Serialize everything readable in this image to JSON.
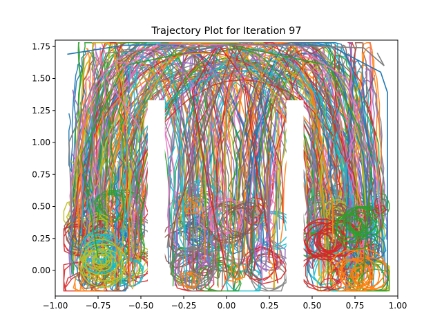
{
  "chart_data": {
    "type": "line",
    "title": "Trajectory Plot for Iteration 97",
    "xlabel": "",
    "ylabel": "",
    "xlim": [
      -1.0,
      1.0
    ],
    "ylim": [
      -0.2,
      1.8
    ],
    "grid": false,
    "legend": "none",
    "x_ticks": [
      -1.0,
      -0.75,
      -0.5,
      -0.25,
      0.0,
      0.25,
      0.5,
      0.75,
      1.0
    ],
    "x_tick_labels": [
      "−1.00",
      "−0.75",
      "−0.50",
      "−0.25",
      "0.00",
      "0.25",
      "0.50",
      "0.75",
      "1.00"
    ],
    "y_ticks": [
      0.0,
      0.25,
      0.5,
      0.75,
      1.0,
      1.25,
      1.5,
      1.75
    ],
    "y_tick_labels": [
      "0.00",
      "0.25",
      "0.50",
      "0.75",
      "1.00",
      "1.25",
      "1.50",
      "1.75"
    ],
    "environment": {
      "top": 1.78,
      "bottom": -0.16,
      "left": -0.95,
      "right": 0.95,
      "walls": [
        {
          "x": [
            -0.46,
            -0.36
          ],
          "y": [
            -0.16,
            1.33
          ]
        },
        {
          "x": [
            0.35,
            0.45
          ],
          "y": [
            -0.16,
            1.33
          ]
        }
      ]
    },
    "colors": [
      "#1f77b4",
      "#ff7f0e",
      "#2ca02c",
      "#d62728",
      "#9467bd",
      "#8c564b",
      "#e377c2",
      "#7f7f7f",
      "#bcbd22",
      "#17becf"
    ],
    "series": [
      {
        "values": [
          [
            -0.93,
            1.69
          ],
          [
            -0.6,
            1.76
          ],
          [
            0.0,
            1.77
          ],
          [
            0.6,
            1.76
          ],
          [
            0.9,
            1.55
          ],
          [
            0.94,
            1.39
          ],
          [
            0.94,
            -0.12
          ]
        ]
      },
      {
        "values": [
          [
            -0.62,
            0.02
          ],
          [
            -0.7,
            0.6
          ],
          [
            -0.55,
            1.4
          ],
          [
            -0.2,
            1.77
          ],
          [
            0.2,
            1.76
          ],
          [
            0.5,
            1.4
          ],
          [
            0.62,
            0.5
          ],
          [
            0.62,
            0.22
          ]
        ]
      },
      {
        "values": [
          [
            -0.75,
            0.1
          ],
          [
            -0.85,
            0.9
          ],
          [
            -0.6,
            1.6
          ],
          [
            0.0,
            1.77
          ],
          [
            0.6,
            1.6
          ],
          [
            0.85,
            0.9
          ],
          [
            0.8,
            0.0
          ]
        ]
      },
      {
        "values": [
          [
            0.0,
            0.0
          ],
          [
            -0.1,
            0.6
          ],
          [
            -0.2,
            1.4
          ],
          [
            -0.05,
            1.77
          ],
          [
            0.1,
            1.5
          ],
          [
            0.2,
            0.6
          ],
          [
            0.3,
            -0.1
          ]
        ]
      },
      {
        "values": [
          [
            -0.3,
            -0.12
          ],
          [
            -0.28,
            0.8
          ],
          [
            -0.25,
            1.7
          ],
          [
            0.0,
            1.76
          ],
          [
            0.2,
            1.2
          ],
          [
            0.25,
            0.2
          ]
        ]
      },
      {
        "values": [
          [
            0.32,
            0.8
          ],
          [
            0.15,
            1.5
          ],
          [
            0.05,
            1.77
          ],
          [
            -0.1,
            1.2
          ],
          [
            -0.3,
            0.4
          ],
          [
            -0.33,
            0.1
          ]
        ]
      },
      {
        "values": [
          [
            -0.5,
            1.1
          ],
          [
            -0.7,
            1.5
          ],
          [
            -0.4,
            1.77
          ],
          [
            0.4,
            1.76
          ],
          [
            0.7,
            1.5
          ],
          [
            0.88,
            0.7
          ],
          [
            0.9,
            0.4
          ]
        ]
      },
      {
        "values": [
          [
            -0.9,
            0.3
          ],
          [
            -0.92,
            1.0
          ],
          [
            -0.7,
            1.7
          ],
          [
            0.1,
            1.77
          ],
          [
            0.8,
            1.74
          ],
          [
            0.92,
            1.6
          ],
          [
            0.88,
            1.7
          ]
        ]
      }
    ]
  }
}
